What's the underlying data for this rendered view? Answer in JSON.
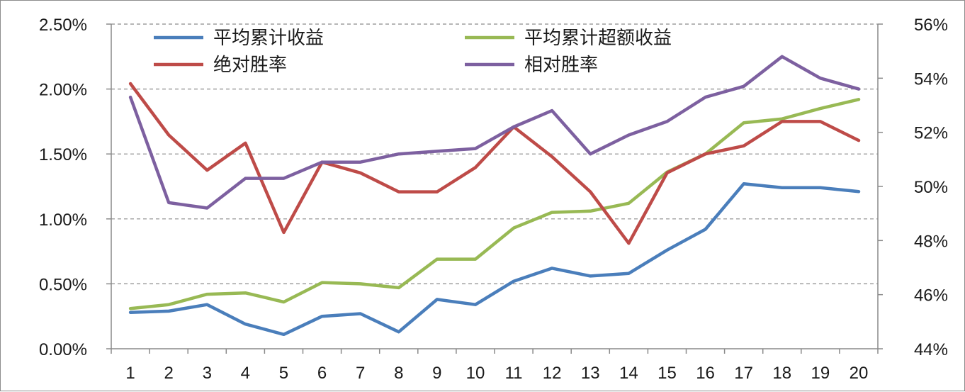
{
  "chart_data": {
    "type": "line",
    "title": "",
    "xlabel": "",
    "ylabel": "",
    "y2label": "",
    "categories": [
      "1",
      "2",
      "3",
      "4",
      "5",
      "6",
      "7",
      "8",
      "9",
      "10",
      "11",
      "12",
      "13",
      "14",
      "15",
      "16",
      "17",
      "18",
      "19",
      "20"
    ],
    "ylim": [
      0,
      2.5
    ],
    "y2lim": [
      44,
      56
    ],
    "y_ticks": [
      "0.00%",
      "0.50%",
      "1.00%",
      "1.50%",
      "2.00%",
      "2.50%"
    ],
    "y2_ticks": [
      "44%",
      "46%",
      "48%",
      "50%",
      "52%",
      "54%",
      "56%"
    ],
    "grid": "horizontal dashed",
    "legend_position": "top",
    "series": [
      {
        "name": "平均累计收益",
        "axis": "left",
        "color": "#4a7ebb",
        "values": [
          0.28,
          0.29,
          0.34,
          0.19,
          0.11,
          0.25,
          0.27,
          0.13,
          0.38,
          0.34,
          0.52,
          0.62,
          0.56,
          0.58,
          0.76,
          0.92,
          1.27,
          1.24,
          1.24,
          1.21
        ]
      },
      {
        "name": "平均累计超额收益",
        "axis": "left",
        "color": "#98b954",
        "values": [
          0.31,
          0.34,
          0.42,
          0.43,
          0.36,
          0.51,
          0.5,
          0.47,
          0.69,
          0.69,
          0.93,
          1.05,
          1.06,
          1.12,
          1.36,
          1.5,
          1.74,
          1.77,
          1.85,
          1.92
        ]
      },
      {
        "name": "绝对胜率",
        "axis": "right",
        "color": "#be4b48",
        "values": [
          53.8,
          51.9,
          50.6,
          51.6,
          48.3,
          50.9,
          50.5,
          49.8,
          49.8,
          50.7,
          52.2,
          51.1,
          49.8,
          47.9,
          50.5,
          51.2,
          51.5,
          52.4,
          52.4,
          51.7
        ]
      },
      {
        "name": "相对胜率",
        "axis": "right",
        "color": "#7d60a0",
        "values": [
          53.3,
          49.4,
          49.2,
          50.3,
          50.3,
          50.9,
          50.9,
          51.2,
          51.3,
          51.4,
          52.2,
          52.8,
          51.2,
          51.9,
          52.4,
          53.3,
          53.7,
          54.8,
          54.0,
          53.6
        ]
      }
    ]
  }
}
